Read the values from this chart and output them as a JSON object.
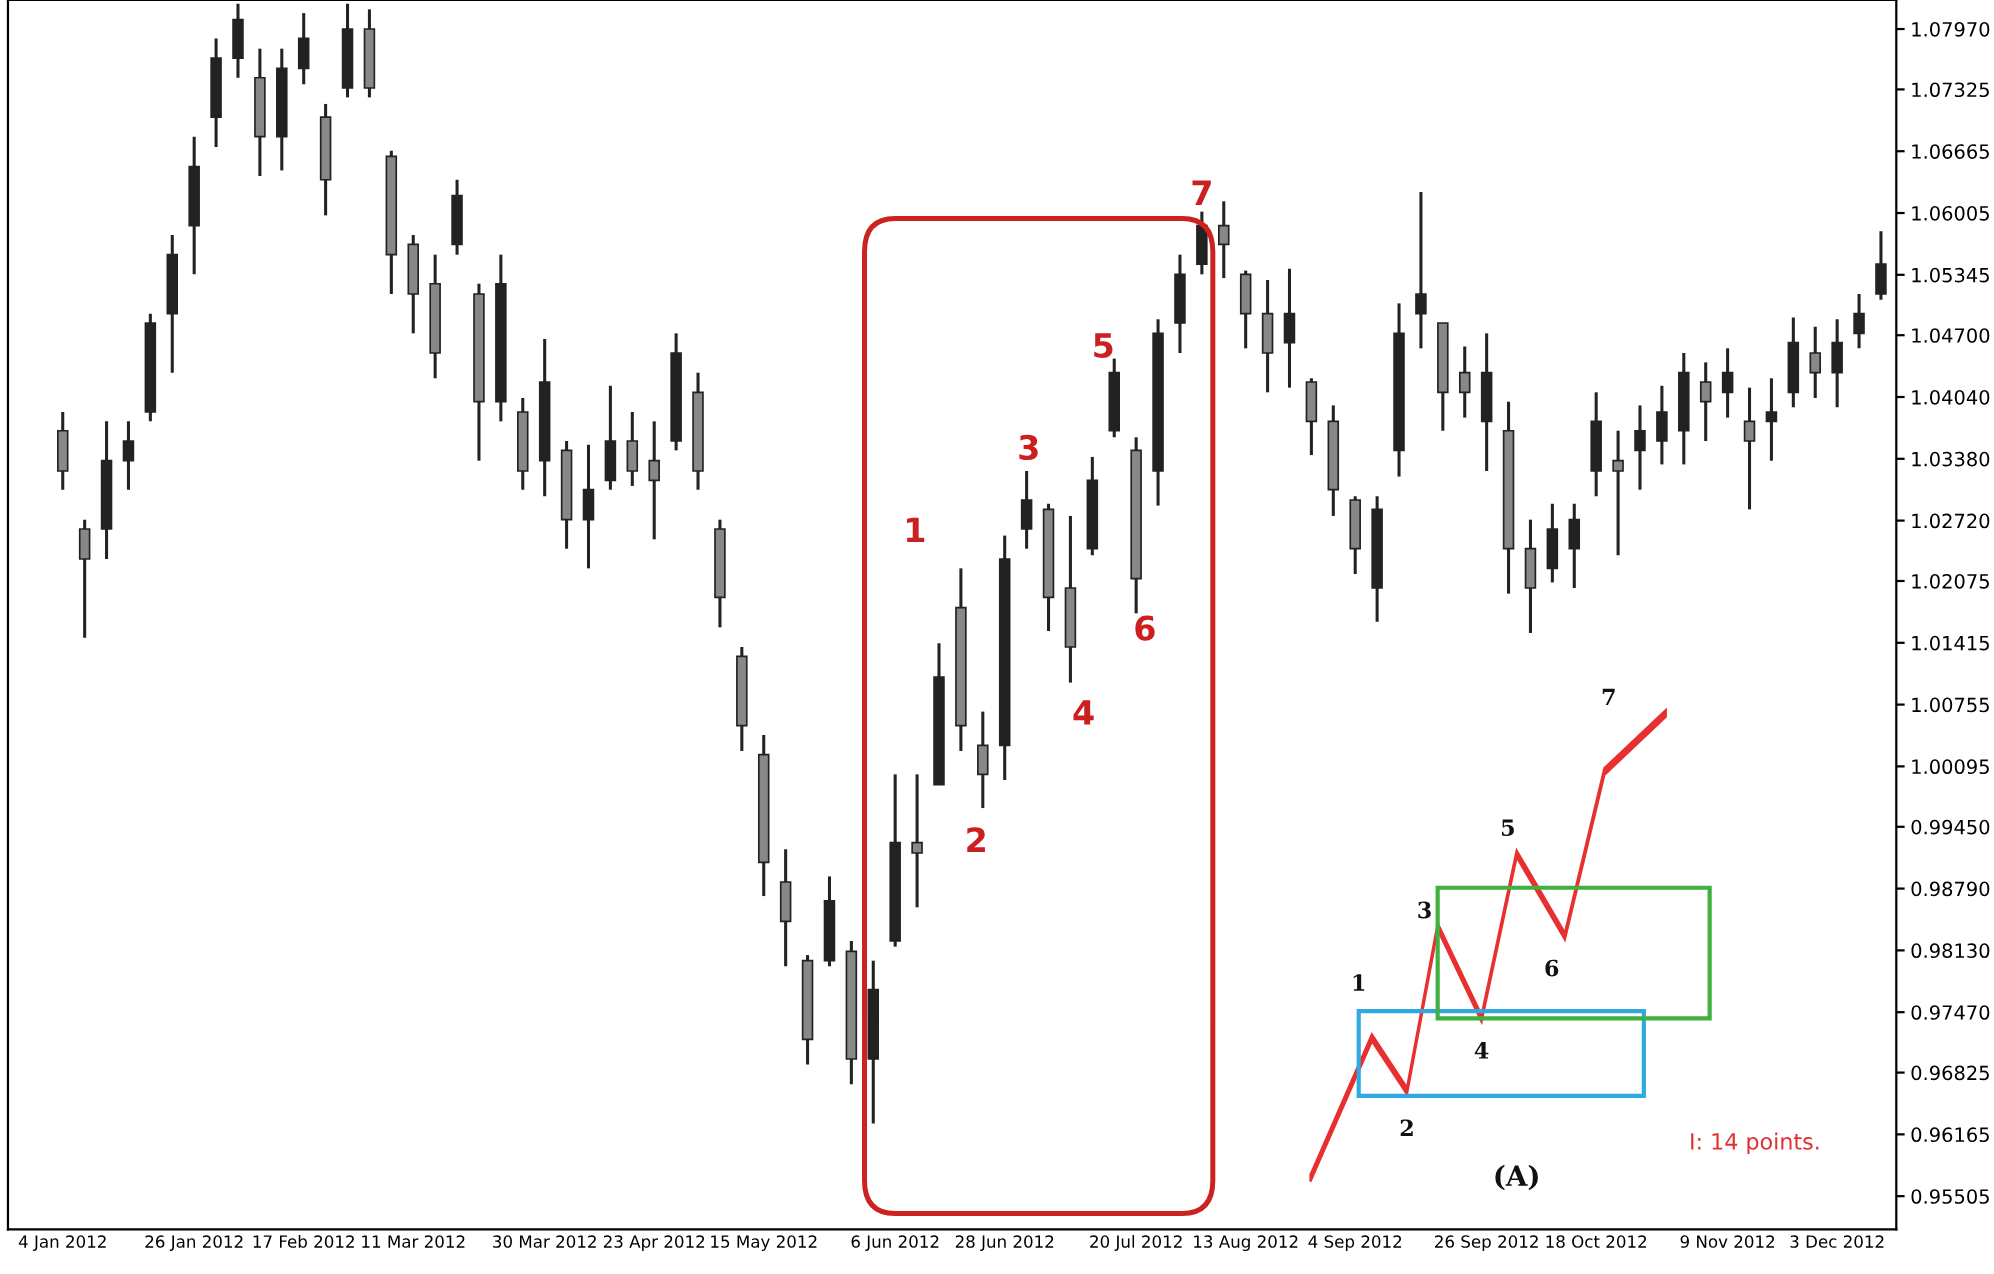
{
  "chart_data": {
    "type": "candlestick",
    "color": "#222222",
    "categories": [
      "4 Jan 2012",
      null,
      null,
      null,
      null,
      null,
      "26 Jan 2012",
      null,
      null,
      null,
      null,
      "17 Feb 2012",
      null,
      null,
      null,
      null,
      "11 Mar 2012",
      null,
      null,
      null,
      null,
      null,
      "30 Mar 2012",
      null,
      null,
      null,
      null,
      "23 Apr 2012",
      null,
      null,
      null,
      null,
      "15 May 2012",
      null,
      null,
      null,
      null,
      null,
      "6 Jun 2012",
      null,
      null,
      null,
      null,
      "28 Jun 2012",
      null,
      null,
      null,
      null,
      null,
      "20 Jul 2012",
      null,
      null,
      null,
      null,
      "13 Aug 2012",
      null,
      null,
      null,
      null,
      "4 Sep 2012",
      null,
      null,
      null,
      null,
      null,
      "26 Sep 2012",
      null,
      null,
      null,
      null,
      "18 Oct 2012",
      null,
      null,
      null,
      null,
      null,
      "9 Nov 2012",
      null,
      null,
      null,
      null,
      "3 Dec 2012",
      null,
      null
    ],
    "ohlc": [
      [
        1.0368,
        1.0388,
        1.0305,
        1.0325
      ],
      [
        1.0263,
        1.0273,
        1.0147,
        1.0231
      ],
      [
        1.0263,
        1.0378,
        1.0231,
        1.0336
      ],
      [
        1.0336,
        1.0378,
        1.0305,
        1.0357
      ],
      [
        1.0388,
        1.0493,
        1.0378,
        1.0483
      ],
      [
        1.0493,
        1.0577,
        1.043,
        1.0556
      ],
      [
        1.0587,
        1.0682,
        1.0535,
        1.065
      ],
      [
        1.0703,
        1.0787,
        1.0671,
        1.0766
      ],
      [
        1.0766,
        1.0824,
        1.0745,
        1.0807
      ],
      [
        1.0745,
        1.0776,
        1.064,
        1.0682
      ],
      [
        1.0682,
        1.0776,
        1.0646,
        1.0755
      ],
      [
        1.0755,
        1.0814,
        1.0738,
        1.0787
      ],
      [
        1.0703,
        1.0717,
        1.0598,
        1.0636
      ],
      [
        1.0734,
        1.0824,
        1.0724,
        1.0797
      ],
      [
        1.0797,
        1.0818,
        1.0724,
        1.0734
      ],
      [
        1.0661,
        1.0667,
        1.0514,
        1.0556
      ],
      [
        1.0567,
        1.0577,
        1.0472,
        1.0514
      ],
      [
        1.0525,
        1.0556,
        1.0424,
        1.0451
      ],
      [
        1.0567,
        1.0636,
        1.0556,
        1.0619
      ],
      [
        1.0514,
        1.0525,
        1.0336,
        1.0399
      ],
      [
        1.0399,
        1.0556,
        1.0378,
        1.0525
      ],
      [
        1.0388,
        1.0403,
        1.0305,
        1.0325
      ],
      [
        1.0336,
        1.0466,
        1.0298,
        1.042
      ],
      [
        1.0347,
        1.0357,
        1.0242,
        1.0273
      ],
      [
        1.0273,
        1.0353,
        1.0221,
        1.0305
      ],
      [
        1.0315,
        1.0416,
        1.0305,
        1.0357
      ],
      [
        1.0357,
        1.0388,
        1.0309,
        1.0325
      ],
      [
        1.0336,
        1.0378,
        1.0252,
        1.0315
      ],
      [
        1.0357,
        1.0472,
        1.0347,
        1.0451
      ],
      [
        1.0409,
        1.043,
        1.0305,
        1.0325
      ],
      [
        1.0263,
        1.0273,
        1.0158,
        1.019
      ],
      [
        1.0127,
        1.0137,
        1.0026,
        1.0053
      ],
      [
        1.0022,
        1.0043,
        0.9871,
        0.9907
      ],
      [
        0.9886,
        0.9921,
        0.9796,
        0.9844
      ],
      [
        0.9802,
        0.9808,
        0.9691,
        0.9718
      ],
      [
        0.9802,
        0.9892,
        0.9796,
        0.9866
      ],
      [
        0.9812,
        0.9823,
        0.967,
        0.9697
      ],
      [
        0.9697,
        0.9802,
        0.9628,
        0.9771
      ],
      [
        0.9823,
        1.0001,
        0.9817,
        0.9928
      ],
      [
        0.9928,
        1.0001,
        0.9859,
        0.9917
      ],
      [
        0.999,
        1.0141,
        0.999,
        1.0105
      ],
      [
        1.0179,
        1.0221,
        1.0026,
        1.0053
      ],
      [
        1.0032,
        1.0068,
        0.9965,
        1.0001
      ],
      [
        1.0032,
        1.0256,
        0.9995,
        1.0231
      ],
      [
        1.0263,
        1.0325,
        1.0242,
        1.0294
      ],
      [
        1.0284,
        1.029,
        1.0154,
        1.019
      ],
      [
        1.02,
        1.0277,
        1.0099,
        1.0137
      ],
      [
        1.0242,
        1.034,
        1.0235,
        1.0315
      ],
      [
        1.0368,
        1.0445,
        1.0361,
        1.043
      ],
      [
        1.0347,
        1.0361,
        1.0173,
        1.021
      ],
      [
        1.0325,
        1.0487,
        1.0288,
        1.0472
      ],
      [
        1.0483,
        1.0556,
        1.0451,
        1.0535
      ],
      [
        1.0546,
        1.0602,
        1.0535,
        1.0587
      ],
      [
        1.0587,
        1.0613,
        1.0531,
        1.0567
      ],
      [
        1.0535,
        1.0539,
        1.0456,
        1.0493
      ],
      [
        1.0493,
        1.0529,
        1.0409,
        1.0451
      ],
      [
        1.0462,
        1.0541,
        1.0414,
        1.0493
      ],
      [
        1.042,
        1.0424,
        1.0342,
        1.0378
      ],
      [
        1.0378,
        1.0395,
        1.0277,
        1.0305
      ],
      [
        1.0294,
        1.0298,
        1.0215,
        1.0242
      ],
      [
        1.02,
        1.0298,
        1.0164,
        1.0284
      ],
      [
        1.0347,
        1.0504,
        1.0319,
        1.0472
      ],
      [
        1.0493,
        1.0623,
        1.0456,
        1.0514
      ],
      [
        1.0483,
        1.0483,
        1.0368,
        1.0409
      ],
      [
        1.043,
        1.0458,
        1.0382,
        1.0409
      ],
      [
        1.0378,
        1.0472,
        1.0325,
        1.043
      ],
      [
        1.0368,
        1.0399,
        1.0194,
        1.0242
      ],
      [
        1.0242,
        1.0273,
        1.0152,
        1.02
      ],
      [
        1.0221,
        1.029,
        1.0206,
        1.0263
      ],
      [
        1.0242,
        1.029,
        1.02,
        1.0273
      ],
      [
        1.0325,
        1.0409,
        1.0298,
        1.0378
      ],
      [
        1.0336,
        1.0368,
        1.0235,
        1.0325
      ],
      [
        1.0347,
        1.0395,
        1.0305,
        1.0368
      ],
      [
        1.0357,
        1.0416,
        1.0332,
        1.0388
      ],
      [
        1.0368,
        1.0451,
        1.0332,
        1.043
      ],
      [
        1.042,
        1.0441,
        1.0357,
        1.0399
      ],
      [
        1.0409,
        1.0456,
        1.0382,
        1.043
      ],
      [
        1.0378,
        1.0414,
        1.0284,
        1.0357
      ],
      [
        1.0378,
        1.0424,
        1.0336,
        1.0388
      ],
      [
        1.0409,
        1.0489,
        1.0393,
        1.0462
      ],
      [
        1.0451,
        1.0479,
        1.0403,
        1.043
      ],
      [
        1.043,
        1.0487,
        1.0393,
        1.0462
      ],
      [
        1.0472,
        1.0514,
        1.0456,
        1.0493
      ],
      [
        1.0514,
        1.0581,
        1.0508,
        1.0546
      ]
    ],
    "ylim": [
      0.9515,
      1.0828
    ],
    "yticks": [
      {
        "value": 0.95505,
        "label": "0.95505"
      },
      {
        "value": 0.96165,
        "label": "0.96165"
      },
      {
        "value": 0.96825,
        "label": "0.96825"
      },
      {
        "value": 0.9747,
        "label": "0.97470"
      },
      {
        "value": 0.9813,
        "label": "0.98130"
      },
      {
        "value": 0.9879,
        "label": "0.98790"
      },
      {
        "value": 0.9945,
        "label": "0.99450"
      },
      {
        "value": 1.00095,
        "label": "1.00095"
      },
      {
        "value": 1.00755,
        "label": "1.00755"
      },
      {
        "value": 1.01415,
        "label": "1.01415"
      },
      {
        "value": 1.02075,
        "label": "1.02075"
      },
      {
        "value": 1.0272,
        "label": "1.02720"
      },
      {
        "value": 1.0338,
        "label": "1.03380"
      },
      {
        "value": 1.0404,
        "label": "1.04040"
      },
      {
        "value": 1.047,
        "label": "1.04700"
      },
      {
        "value": 1.05345,
        "label": "1.05345"
      },
      {
        "value": 1.06005,
        "label": "1.06005"
      },
      {
        "value": 1.06665,
        "label": "1.06665"
      },
      {
        "value": 1.07325,
        "label": "1.07325"
      },
      {
        "value": 1.0797,
        "label": "1.07970"
      }
    ],
    "annotations": [
      "1",
      "2",
      "3",
      "4",
      "5",
      "6",
      "7",
      "1",
      "2",
      "3",
      "4",
      "5",
      "6",
      "7",
      "(A)",
      "I: 14 points."
    ],
    "grid": false
  }
}
